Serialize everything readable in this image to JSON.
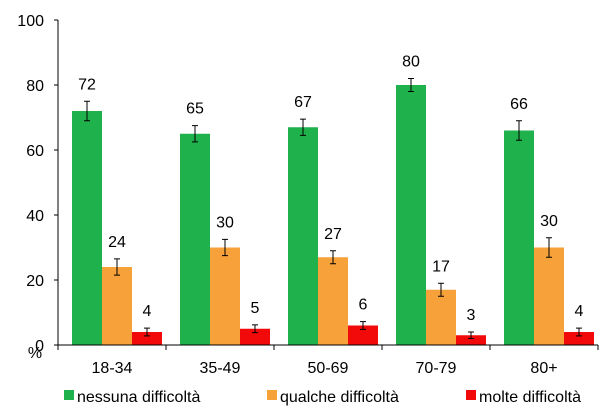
{
  "chart_data": {
    "type": "bar",
    "title": "",
    "xlabel": "",
    "ylabel": "%",
    "ylim": [
      0,
      100
    ],
    "yticks": [
      0,
      20,
      40,
      60,
      80,
      100
    ],
    "grid": false,
    "legend_position": "bottom",
    "error_bars": true,
    "categories": [
      "18-34",
      "35-49",
      "50-69",
      "70-79",
      "80+"
    ],
    "series": [
      {
        "name": "nessuna difficoltà",
        "color": "#1fb14c",
        "values": [
          72,
          65,
          67,
          80,
          66
        ],
        "error": [
          3,
          2.5,
          2.5,
          2,
          3
        ]
      },
      {
        "name": "qualche difficoltà",
        "color": "#f7a13a",
        "values": [
          24,
          30,
          27,
          17,
          30
        ],
        "error": [
          2.5,
          2.5,
          2,
          2,
          3
        ]
      },
      {
        "name": "molte difficoltà",
        "color": "#f20a0a",
        "values": [
          4,
          5,
          6,
          3,
          4
        ],
        "error": [
          1.2,
          1.2,
          1.2,
          1,
          1.2
        ]
      }
    ]
  }
}
